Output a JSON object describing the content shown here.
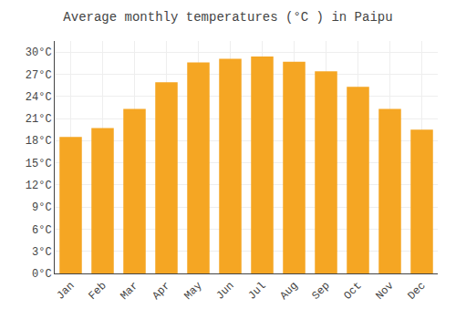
{
  "chart_data": {
    "type": "bar",
    "title": "Average monthly temperatures (°C ) in Paipu",
    "categories": [
      "Jan",
      "Feb",
      "Mar",
      "Apr",
      "May",
      "Jun",
      "Jul",
      "Aug",
      "Sep",
      "Oct",
      "Nov",
      "Dec"
    ],
    "values": [
      18.5,
      19.7,
      22.3,
      25.9,
      28.6,
      29.1,
      29.4,
      28.7,
      27.4,
      25.3,
      22.3,
      19.5
    ],
    "color": "#F5A623",
    "ylim": [
      0,
      31.5
    ],
    "yticks": [
      {
        "value": 0,
        "label": "0°C"
      },
      {
        "value": 3,
        "label": "3°C"
      },
      {
        "value": 6,
        "label": "6°C"
      },
      {
        "value": 9,
        "label": "9°C"
      },
      {
        "value": 12,
        "label": "12°C"
      },
      {
        "value": 15,
        "label": "15°C"
      },
      {
        "value": 18,
        "label": "18°C"
      },
      {
        "value": 21,
        "label": "21°C"
      },
      {
        "value": 24,
        "label": "24°C"
      },
      {
        "value": 27,
        "label": "27°C"
      },
      {
        "value": 30,
        "label": "30°C"
      }
    ],
    "grid": true
  }
}
